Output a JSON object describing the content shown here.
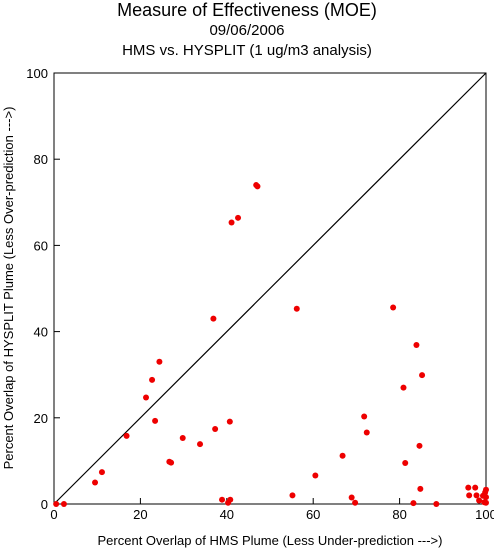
{
  "chart_data": {
    "type": "scatter",
    "title": "Measure of Effectiveness (MOE)",
    "subtitle": "09/06/2006",
    "subtitle2": "HMS vs. HYSPLIT  (1 ug/m3 analysis)",
    "xlabel": "Percent Overlap of HMS Plume (Less Under-prediction --->)",
    "ylabel": "Percent Overlap of HYSPLIT Plume (Less Over-prediction --->)",
    "xlim": [
      0,
      100
    ],
    "ylim": [
      0,
      100
    ],
    "xticks": [
      "0",
      "20",
      "40",
      "60",
      "80",
      "100"
    ],
    "yticks": [
      "0",
      "20",
      "40",
      "60",
      "80",
      "100"
    ],
    "diagonal_line": true,
    "grid": false,
    "marker_color": "#ee0000",
    "points": [
      [
        0.5,
        0
      ],
      [
        2.3,
        0
      ],
      [
        9.5,
        5
      ],
      [
        11.1,
        7.4
      ],
      [
        16.8,
        15.8
      ],
      [
        21.3,
        24.7
      ],
      [
        22.7,
        28.8
      ],
      [
        23.4,
        19.3
      ],
      [
        24.4,
        33
      ],
      [
        26.7,
        9.8
      ],
      [
        27.1,
        9.6
      ],
      [
        29.8,
        15.3
      ],
      [
        33.8,
        13.9
      ],
      [
        36.9,
        43
      ],
      [
        37.3,
        17.4
      ],
      [
        38.9,
        1
      ],
      [
        40.3,
        0.3
      ],
      [
        40.7,
        19.1
      ],
      [
        40.8,
        1
      ],
      [
        41.1,
        65.3
      ],
      [
        42.6,
        66.4
      ],
      [
        46.8,
        74
      ],
      [
        47.1,
        73.7
      ],
      [
        55.2,
        2
      ],
      [
        56.2,
        45.3
      ],
      [
        60.5,
        6.6
      ],
      [
        66.8,
        11.2
      ],
      [
        68.9,
        1.5
      ],
      [
        69.7,
        0.3
      ],
      [
        71.8,
        20.3
      ],
      [
        72.4,
        16.6
      ],
      [
        78.5,
        45.6
      ],
      [
        80.9,
        27
      ],
      [
        81.3,
        9.5
      ],
      [
        83.2,
        0.2
      ],
      [
        83.9,
        36.9
      ],
      [
        84.6,
        13.5
      ],
      [
        84.8,
        3.5
      ],
      [
        85.2,
        29.9
      ],
      [
        88.5,
        0
      ],
      [
        95.9,
        3.8
      ],
      [
        96.1,
        2
      ],
      [
        97.5,
        3.8
      ],
      [
        97.8,
        2
      ],
      [
        98.4,
        0.8
      ],
      [
        99.3,
        1.9
      ],
      [
        99.6,
        0.4
      ],
      [
        99.8,
        2.7
      ],
      [
        100,
        3.3
      ],
      [
        100,
        1.6
      ],
      [
        100,
        0.3
      ]
    ]
  }
}
